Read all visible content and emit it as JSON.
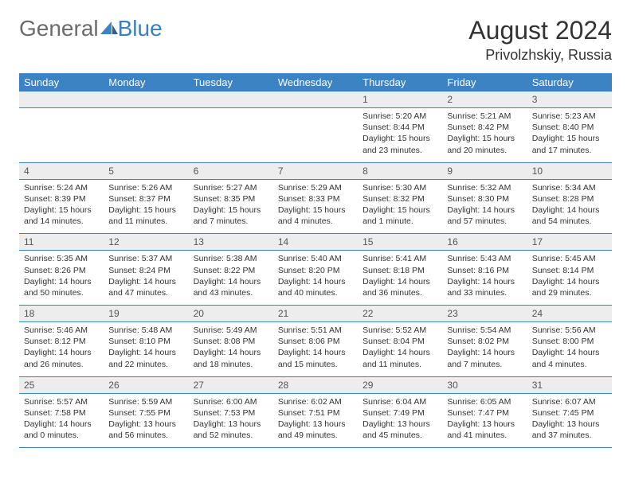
{
  "brand": {
    "part1": "General",
    "part2": "Blue"
  },
  "title": "August 2024",
  "location": "Privolzhskiy, Russia",
  "colors": {
    "headerBg": "#3c83c4",
    "headerText": "#ffffff",
    "dayBg": "#ededed",
    "border": "#3c83c4"
  },
  "dayHeaders": [
    "Sunday",
    "Monday",
    "Tuesday",
    "Wednesday",
    "Thursday",
    "Friday",
    "Saturday"
  ],
  "weeks": [
    [
      null,
      null,
      null,
      null,
      {
        "n": "1",
        "sr": "5:20 AM",
        "ss": "8:44 PM",
        "dl": "15 hours and 23 minutes."
      },
      {
        "n": "2",
        "sr": "5:21 AM",
        "ss": "8:42 PM",
        "dl": "15 hours and 20 minutes."
      },
      {
        "n": "3",
        "sr": "5:23 AM",
        "ss": "8:40 PM",
        "dl": "15 hours and 17 minutes."
      }
    ],
    [
      {
        "n": "4",
        "sr": "5:24 AM",
        "ss": "8:39 PM",
        "dl": "15 hours and 14 minutes."
      },
      {
        "n": "5",
        "sr": "5:26 AM",
        "ss": "8:37 PM",
        "dl": "15 hours and 11 minutes."
      },
      {
        "n": "6",
        "sr": "5:27 AM",
        "ss": "8:35 PM",
        "dl": "15 hours and 7 minutes."
      },
      {
        "n": "7",
        "sr": "5:29 AM",
        "ss": "8:33 PM",
        "dl": "15 hours and 4 minutes."
      },
      {
        "n": "8",
        "sr": "5:30 AM",
        "ss": "8:32 PM",
        "dl": "15 hours and 1 minute."
      },
      {
        "n": "9",
        "sr": "5:32 AM",
        "ss": "8:30 PM",
        "dl": "14 hours and 57 minutes."
      },
      {
        "n": "10",
        "sr": "5:34 AM",
        "ss": "8:28 PM",
        "dl": "14 hours and 54 minutes."
      }
    ],
    [
      {
        "n": "11",
        "sr": "5:35 AM",
        "ss": "8:26 PM",
        "dl": "14 hours and 50 minutes."
      },
      {
        "n": "12",
        "sr": "5:37 AM",
        "ss": "8:24 PM",
        "dl": "14 hours and 47 minutes."
      },
      {
        "n": "13",
        "sr": "5:38 AM",
        "ss": "8:22 PM",
        "dl": "14 hours and 43 minutes."
      },
      {
        "n": "14",
        "sr": "5:40 AM",
        "ss": "8:20 PM",
        "dl": "14 hours and 40 minutes."
      },
      {
        "n": "15",
        "sr": "5:41 AM",
        "ss": "8:18 PM",
        "dl": "14 hours and 36 minutes."
      },
      {
        "n": "16",
        "sr": "5:43 AM",
        "ss": "8:16 PM",
        "dl": "14 hours and 33 minutes."
      },
      {
        "n": "17",
        "sr": "5:45 AM",
        "ss": "8:14 PM",
        "dl": "14 hours and 29 minutes."
      }
    ],
    [
      {
        "n": "18",
        "sr": "5:46 AM",
        "ss": "8:12 PM",
        "dl": "14 hours and 26 minutes."
      },
      {
        "n": "19",
        "sr": "5:48 AM",
        "ss": "8:10 PM",
        "dl": "14 hours and 22 minutes."
      },
      {
        "n": "20",
        "sr": "5:49 AM",
        "ss": "8:08 PM",
        "dl": "14 hours and 18 minutes."
      },
      {
        "n": "21",
        "sr": "5:51 AM",
        "ss": "8:06 PM",
        "dl": "14 hours and 15 minutes."
      },
      {
        "n": "22",
        "sr": "5:52 AM",
        "ss": "8:04 PM",
        "dl": "14 hours and 11 minutes."
      },
      {
        "n": "23",
        "sr": "5:54 AM",
        "ss": "8:02 PM",
        "dl": "14 hours and 7 minutes."
      },
      {
        "n": "24",
        "sr": "5:56 AM",
        "ss": "8:00 PM",
        "dl": "14 hours and 4 minutes."
      }
    ],
    [
      {
        "n": "25",
        "sr": "5:57 AM",
        "ss": "7:58 PM",
        "dl": "14 hours and 0 minutes."
      },
      {
        "n": "26",
        "sr": "5:59 AM",
        "ss": "7:55 PM",
        "dl": "13 hours and 56 minutes."
      },
      {
        "n": "27",
        "sr": "6:00 AM",
        "ss": "7:53 PM",
        "dl": "13 hours and 52 minutes."
      },
      {
        "n": "28",
        "sr": "6:02 AM",
        "ss": "7:51 PM",
        "dl": "13 hours and 49 minutes."
      },
      {
        "n": "29",
        "sr": "6:04 AM",
        "ss": "7:49 PM",
        "dl": "13 hours and 45 minutes."
      },
      {
        "n": "30",
        "sr": "6:05 AM",
        "ss": "7:47 PM",
        "dl": "13 hours and 41 minutes."
      },
      {
        "n": "31",
        "sr": "6:07 AM",
        "ss": "7:45 PM",
        "dl": "13 hours and 37 minutes."
      }
    ]
  ],
  "labels": {
    "sunrise": "Sunrise:",
    "sunset": "Sunset:",
    "daylight": "Daylight:"
  }
}
